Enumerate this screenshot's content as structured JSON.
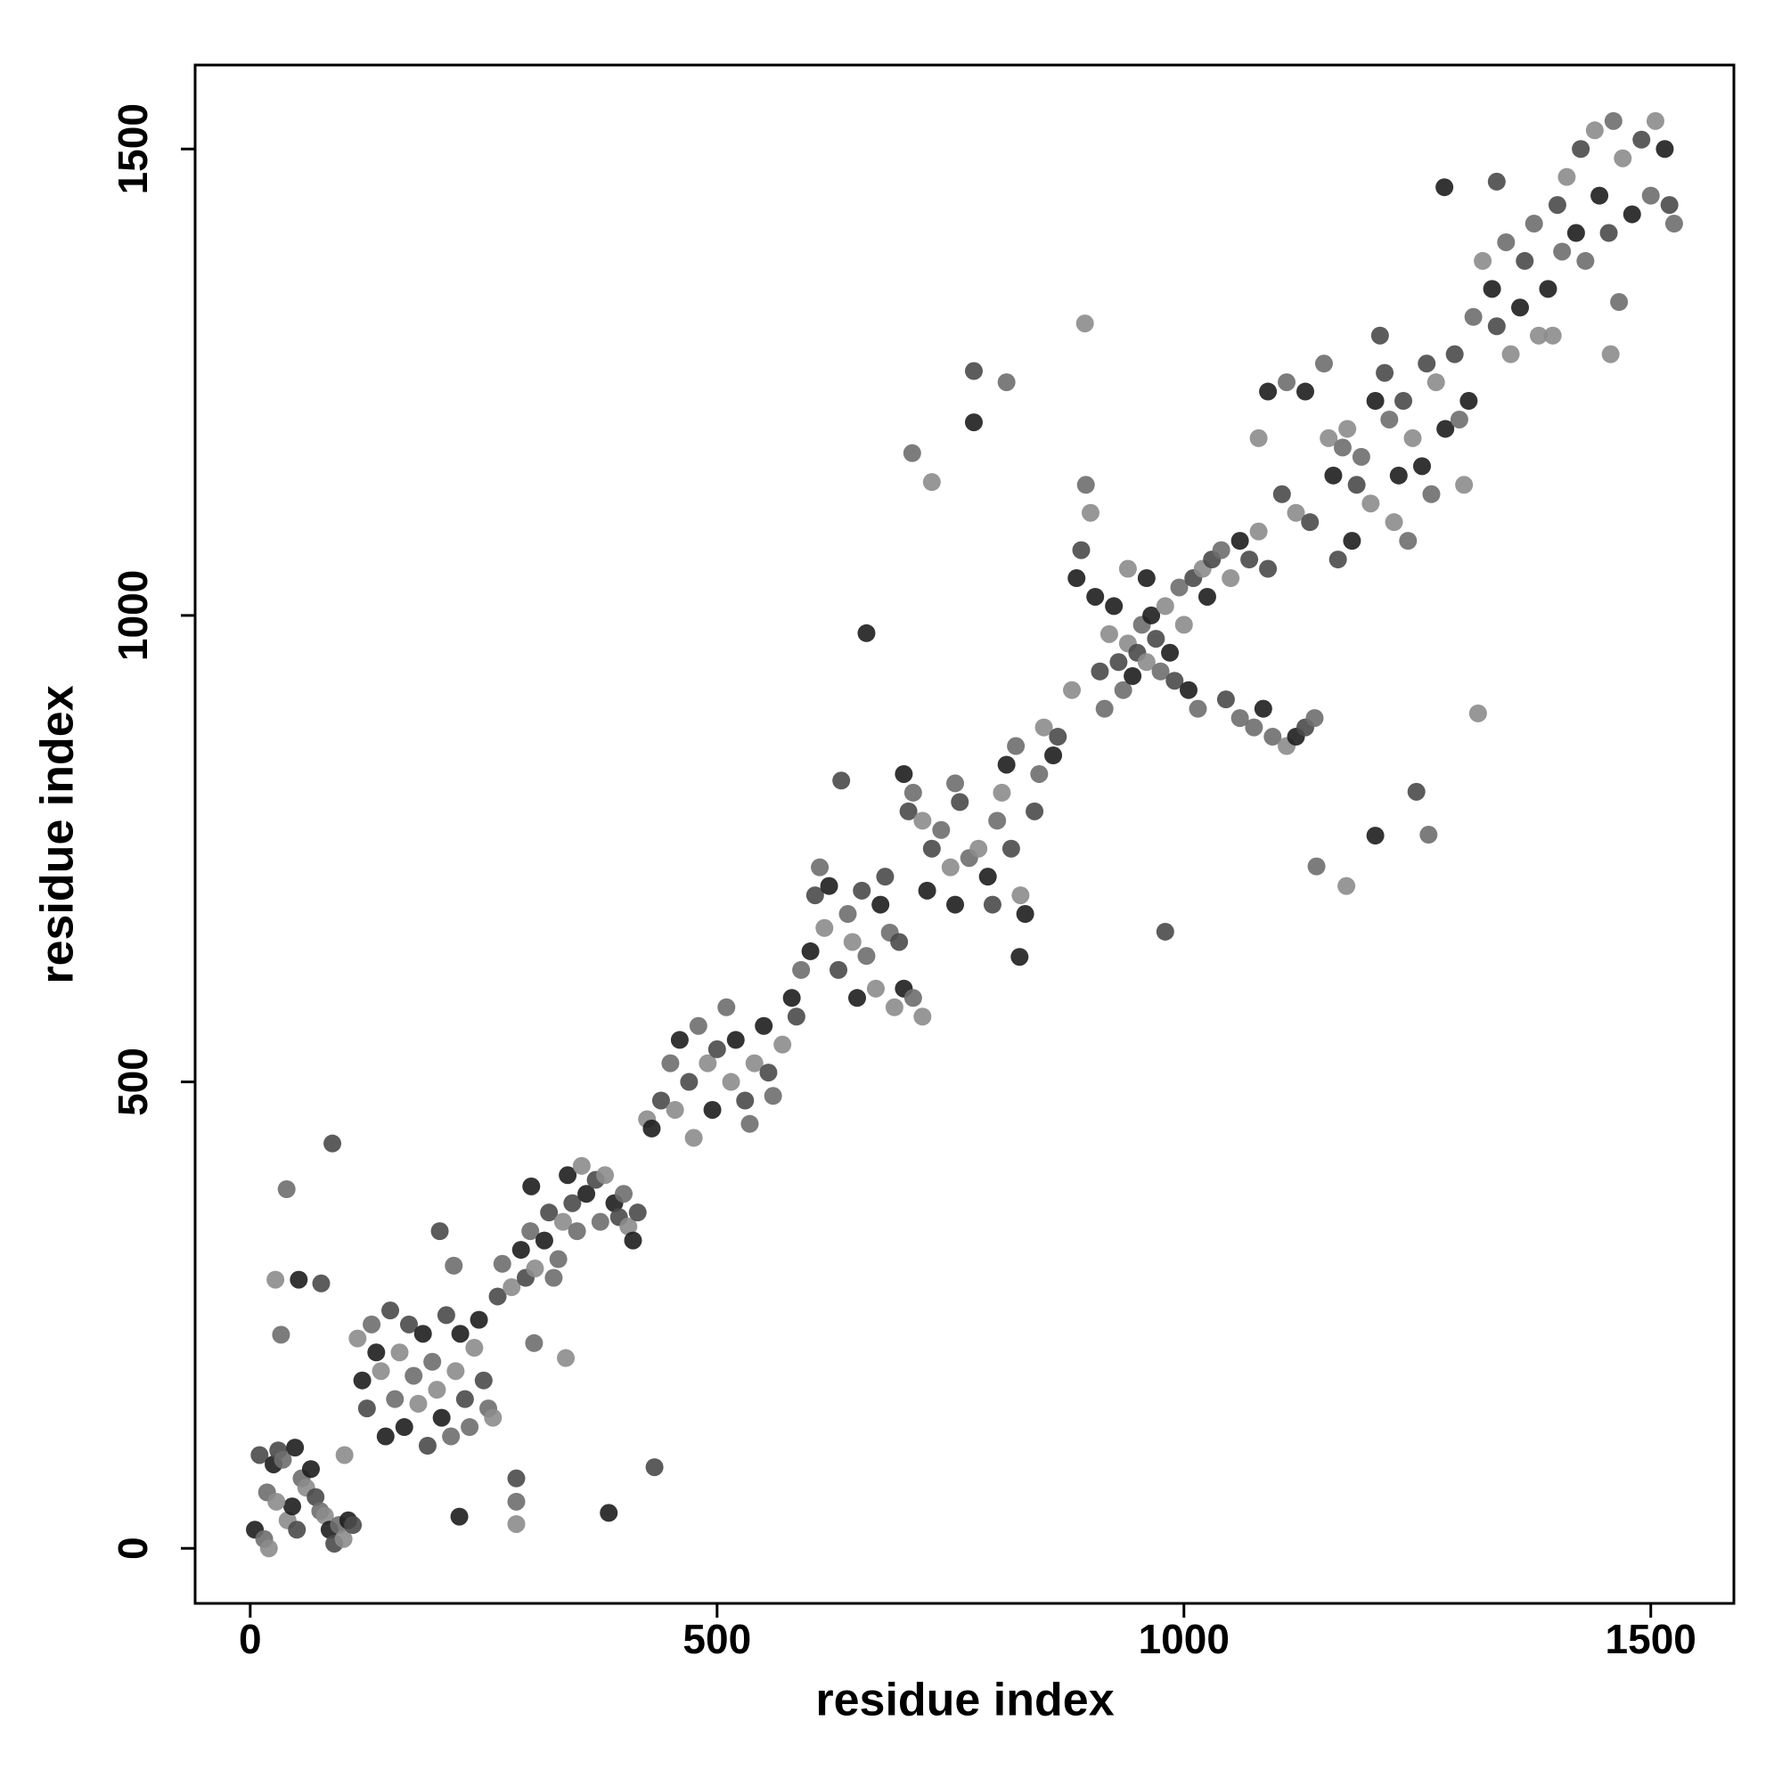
{
  "chart_data": {
    "type": "scatter",
    "xlabel": "residue index",
    "ylabel": "residue index",
    "xlim": [
      -59,
      1589
    ],
    "ylim": [
      -59,
      1590
    ],
    "xticks": [
      0,
      500,
      1000,
      1500
    ],
    "yticks": [
      0,
      500,
      1000,
      1500
    ],
    "palette": [
      "#1e1e1e",
      "#4a4a4a",
      "#6e6e6e",
      "#8c8c8c"
    ],
    "x": [
      5,
      10,
      15,
      20,
      25,
      30,
      35,
      40,
      45,
      50,
      55,
      60,
      65,
      70,
      75,
      80,
      85,
      90,
      95,
      100,
      105,
      110,
      18,
      28,
      48,
      88,
      39,
      27,
      52,
      76,
      33,
      101,
      224,
      285,
      285,
      285,
      384,
      433,
      304,
      338,
      301,
      203,
      218,
      115,
      120,
      125,
      130,
      140,
      145,
      150,
      155,
      160,
      165,
      170,
      175,
      180,
      185,
      190,
      195,
      200,
      205,
      210,
      215,
      220,
      225,
      230,
      235,
      240,
      245,
      250,
      255,
      260,
      135,
      265,
      270,
      280,
      290,
      295,
      300,
      305,
      315,
      320,
      330,
      335,
      340,
      345,
      350,
      355,
      360,
      370,
      375,
      380,
      390,
      395,
      400,
      405,
      410,
      415,
      325,
      425,
      430,
      440,
      450,
      455,
      460,
      470,
      480,
      490,
      495,
      500,
      510,
      515,
      520,
      530,
      535,
      540,
      550,
      555,
      560,
      570,
      580,
      585,
      590,
      475,
      600,
      605,
      610,
      615,
      620,
      630,
      640,
      645,
      650,
      655,
      660,
      670,
      675,
      680,
      685,
      690,
      700,
      695,
      710,
      720,
      700,
      705,
      710,
      720,
      725,
      730,
      740,
      750,
      755,
      760,
      770,
      780,
      790,
      795,
      800,
      805,
      810,
      815,
      820,
      825,
      830,
      840,
      845,
      850,
      860,
      865,
      755,
      880,
      885,
      890,
      895,
      900,
      905,
      910,
      915,
      920,
      925,
      930,
      935,
      940,
      945,
      950,
      955,
      960,
      965,
      970,
      975,
      980,
      985,
      990,
      995,
      1000,
      1005,
      1010,
      1015,
      1020,
      1025,
      1030,
      1040,
      1050,
      1060,
      1070,
      1075,
      1080,
      1085,
      1090,
      1095,
      1110,
      1120,
      1130,
      1140,
      940,
      960,
      1045,
      1060,
      1080,
      1090,
      1105,
      1110,
      1120,
      1130,
      1135,
      1150,
      1155,
      1160,
      1165,
      1170,
      1175,
      1180,
      1185,
      1190,
      1200,
      1205,
      1215,
      1220,
      1225,
      1230,
      1235,
      1240,
      1245,
      1255,
      1260,
      1265,
      1270,
      1280,
      1290,
      1295,
      1300,
      1305,
      1210,
      1310,
      1320,
      1330,
      1335,
      1345,
      1350,
      1360,
      1365,
      1375,
      1380,
      1390,
      1400,
      1405,
      1410,
      1420,
      1425,
      1430,
      1440,
      1445,
      1455,
      1460,
      1470,
      1480,
      1490,
      1500,
      1505,
      1515,
      1520,
      1525,
      1395,
      660,
      633,
      709,
      730,
      775,
      775,
      810,
      894,
      824,
      980,
      1142,
      1174,
      1205,
      1249,
      1262,
      1315,
      1279,
      1335,
      1466,
      1457
    ],
    "values": [
      20,
      100,
      10,
      0,
      90,
      105,
      95,
      30,
      45,
      20,
      75,
      65,
      85,
      55,
      40,
      35,
      20,
      5,
      25,
      10,
      30,
      25,
      60,
      50,
      108,
      434,
      385,
      288,
      288,
      284,
      229,
      100,
      34,
      75,
      50,
      26,
      38,
      87,
      220,
      204,
      388,
      340,
      303,
      225,
      180,
      150,
      240,
      190,
      120,
      255,
      160,
      210,
      130,
      240,
      185,
      155,
      230,
      110,
      200,
      170,
      140,
      250,
      120,
      190,
      230,
      160,
      130,
      215,
      245,
      180,
      150,
      140,
      210,
      270,
      305,
      280,
      320,
      290,
      340,
      300,
      330,
      360,
      310,
      350,
      400,
      370,
      340,
      410,
      380,
      395,
      350,
      400,
      370,
      355,
      380,
      345,
      330,
      360,
      290,
      460,
      450,
      480,
      520,
      470,
      545,
      500,
      560,
      520,
      470,
      535,
      580,
      500,
      545,
      480,
      455,
      520,
      560,
      510,
      485,
      540,
      590,
      570,
      620,
      440,
      640,
      700,
      730,
      665,
      710,
      620,
      680,
      650,
      590,
      705,
      635,
      600,
      690,
      720,
      660,
      580,
      600,
      650,
      590,
      570,
      830,
      790,
      810,
      780,
      705,
      750,
      770,
      730,
      690,
      800,
      740,
      750,
      720,
      690,
      780,
      810,
      840,
      750,
      860,
      700,
      680,
      790,
      830,
      880,
      850,
      870,
      820,
      920,
      1040,
      1070,
      1140,
      1110,
      1020,
      940,
      900,
      980,
      1010,
      950,
      920,
      970,
      935,
      960,
      990,
      950,
      1000,
      975,
      940,
      1010,
      960,
      930,
      1030,
      990,
      920,
      1040,
      900,
      1050,
      1020,
      1060,
      1070,
      1040,
      1080,
      1060,
      880,
      1090,
      900,
      1050,
      870,
      860,
      870,
      880,
      890,
      1050,
      1040,
      910,
      890,
      1190,
      1240,
      1130,
      1250,
      1110,
      1240,
      1100,
      1270,
      1190,
      1150,
      1060,
      1180,
      1200,
      1080,
      1140,
      1170,
      1120,
      1230,
      1260,
      1210,
      1100,
      1150,
      1230,
      1080,
      1190,
      1160,
      1270,
      1130,
      1250,
      1200,
      1280,
      1210,
      1140,
      1230,
      1300,
      1320,
      1380,
      1350,
      1310,
      1400,
      1280,
      1330,
      1380,
      1420,
      1300,
      1350,
      1440,
      1390,
      1470,
      1410,
      1500,
      1380,
      1520,
      1450,
      1410,
      1530,
      1490,
      1430,
      1510,
      1450,
      1530,
      1500,
      1440,
      1420,
      1300,
      981,
      823,
      1174,
      1143,
      1207,
      1262,
      1250,
      1313,
      634,
      661,
      731,
      710,
      764,
      811,
      765,
      895,
      1459,
      1465,
      1336,
      1280
    ]
  }
}
